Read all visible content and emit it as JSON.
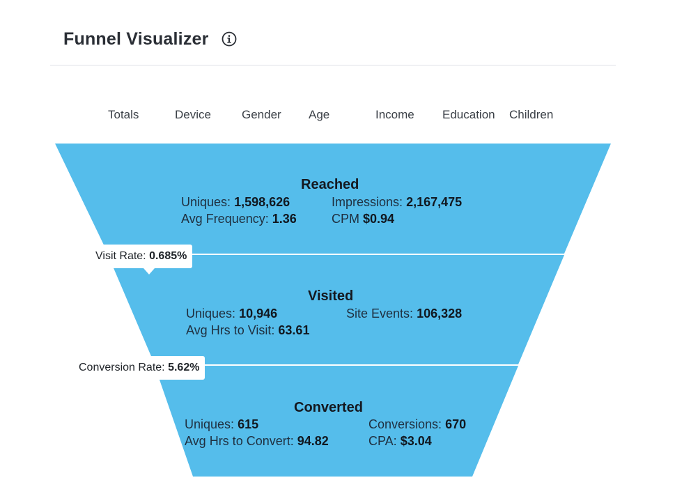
{
  "header": {
    "title": "Funnel Visualizer",
    "info_icon": "info-circle-icon"
  },
  "tabs": [
    {
      "label": "Totals"
    },
    {
      "label": "Device"
    },
    {
      "label": "Gender"
    },
    {
      "label": "Age"
    },
    {
      "label": "Income"
    },
    {
      "label": "Education"
    },
    {
      "label": "Children"
    }
  ],
  "colors": {
    "funnel": "#55bdeb",
    "separator": "#ffffff",
    "text": "#1f2f3f"
  },
  "funnel": {
    "reached": {
      "title": "Reached",
      "uniques_label": "Uniques:",
      "uniques_value": "1,598,626",
      "impressions_label": "Impressions:",
      "impressions_value": "2,167,475",
      "avg_frequency_label": "Avg Frequency:",
      "avg_frequency_value": "1.36",
      "cpm_label": "CPM",
      "cpm_value": "$0.94"
    },
    "visit_rate": {
      "label": "Visit Rate:",
      "value": "0.685%"
    },
    "visited": {
      "title": "Visited",
      "uniques_label": "Uniques:",
      "uniques_value": "10,946",
      "site_events_label": "Site Events:",
      "site_events_value": "106,328",
      "avg_hrs_label": "Avg Hrs to Visit:",
      "avg_hrs_value": "63.61"
    },
    "conversion_rate": {
      "label": "Conversion Rate:",
      "value": "5.62%"
    },
    "converted": {
      "title": "Converted",
      "uniques_label": "Uniques:",
      "uniques_value": "615",
      "conversions_label": "Conversions:",
      "conversions_value": "670",
      "avg_hrs_label": "Avg Hrs to Convert:",
      "avg_hrs_value": "94.82",
      "cpa_label": "CPA:",
      "cpa_value": "$3.04"
    }
  }
}
